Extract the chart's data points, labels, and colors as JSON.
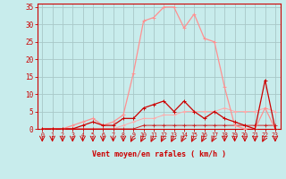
{
  "xlabel": "Vent moyen/en rafales ( km/h )",
  "bg_color": "#c8ecec",
  "grid_color": "#a8c8c8",
  "x": [
    0,
    1,
    2,
    3,
    4,
    5,
    6,
    7,
    8,
    9,
    10,
    11,
    12,
    13,
    14,
    15,
    16,
    17,
    18,
    19,
    20,
    21,
    22,
    23
  ],
  "line1_color": "#ff9090",
  "line2_color": "#cc0000",
  "line3_color": "#ffaaaa",
  "line4_color": "#cc2222",
  "line1_values": [
    0,
    0,
    0,
    1,
    2,
    3,
    1,
    2,
    4,
    16,
    31,
    32,
    35,
    35,
    29,
    33,
    26,
    25,
    12,
    1,
    0,
    0,
    6,
    0
  ],
  "line2_values": [
    0,
    0,
    0,
    0,
    1,
    2,
    1,
    1,
    3,
    3,
    6,
    7,
    8,
    5,
    8,
    5,
    3,
    5,
    3,
    2,
    1,
    0,
    14,
    0
  ],
  "line3_values": [
    0,
    0,
    0,
    0,
    0,
    0,
    0,
    0,
    1,
    2,
    3,
    3,
    4,
    4,
    5,
    5,
    5,
    5,
    6,
    5,
    5,
    5,
    6,
    5
  ],
  "line4_values": [
    0,
    0,
    0,
    0,
    0,
    0,
    0,
    0,
    0,
    0,
    1,
    1,
    1,
    1,
    1,
    1,
    1,
    1,
    1,
    1,
    1,
    1,
    1,
    1
  ],
  "ylim": [
    0,
    36
  ],
  "xlim": [
    -0.5,
    23.5
  ],
  "yticks": [
    0,
    5,
    10,
    15,
    20,
    25,
    30,
    35
  ],
  "xticks": [
    0,
    1,
    2,
    3,
    4,
    5,
    6,
    7,
    8,
    9,
    10,
    11,
    12,
    13,
    14,
    15,
    16,
    17,
    18,
    19,
    20,
    21,
    22,
    23
  ],
  "tick_color": "#cc0000",
  "arrow_color": "#cc0000",
  "arrow_straight": [
    0,
    1,
    2,
    3,
    4,
    5,
    6,
    7,
    8,
    18,
    19,
    20,
    21,
    23
  ],
  "arrow_diagonal": [
    9,
    10,
    11,
    12,
    13,
    14,
    15,
    16,
    17,
    22
  ]
}
